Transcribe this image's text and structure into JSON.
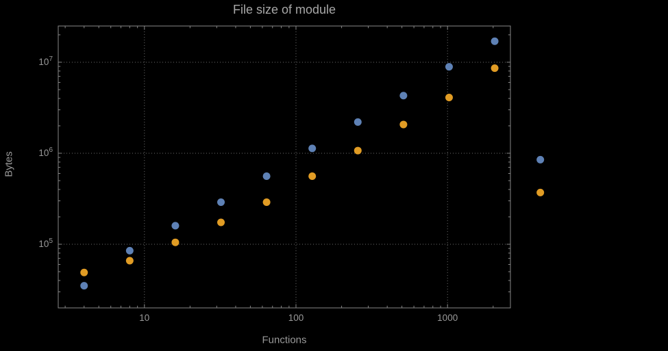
{
  "chart_data": {
    "type": "scatter",
    "title": "File size of module",
    "xlabel": "Functions",
    "ylabel": "Bytes",
    "x_scale": "log",
    "y_scale": "log",
    "x_range": [
      2.7,
      2600
    ],
    "y_range": [
      20000,
      25000000
    ],
    "grid": "dotted",
    "legend": "none",
    "x_ticks": [
      {
        "value": 10,
        "label": "10"
      },
      {
        "value": 100,
        "label": "100"
      },
      {
        "value": 1000,
        "label": "1000"
      }
    ],
    "y_ticks": [
      {
        "value": 100000,
        "label": "10^5"
      },
      {
        "value": 1000000,
        "label": "10^6"
      },
      {
        "value": 10000000,
        "label": "10^7"
      }
    ],
    "x": [
      4,
      8,
      16,
      32,
      64,
      128,
      256,
      512,
      1024,
      2048,
      4096
    ],
    "series": [
      {
        "name": "blue-series",
        "color": "#5E81B5",
        "values": [
          35000,
          85000,
          160000,
          290000,
          560000,
          1130000,
          2200000,
          4300000,
          8900000,
          17000000,
          850000
        ]
      },
      {
        "name": "orange-series",
        "color": "#E19C24",
        "values": [
          49000,
          66000,
          105000,
          174000,
          290000,
          560000,
          1070000,
          2070000,
          4100000,
          8600000,
          370000
        ]
      }
    ]
  },
  "colors": {
    "background": "#000000",
    "frame": "#878787",
    "gridline": "#6f6f6f",
    "tick_text": "#999999",
    "title_text": "#a8a8a8"
  }
}
